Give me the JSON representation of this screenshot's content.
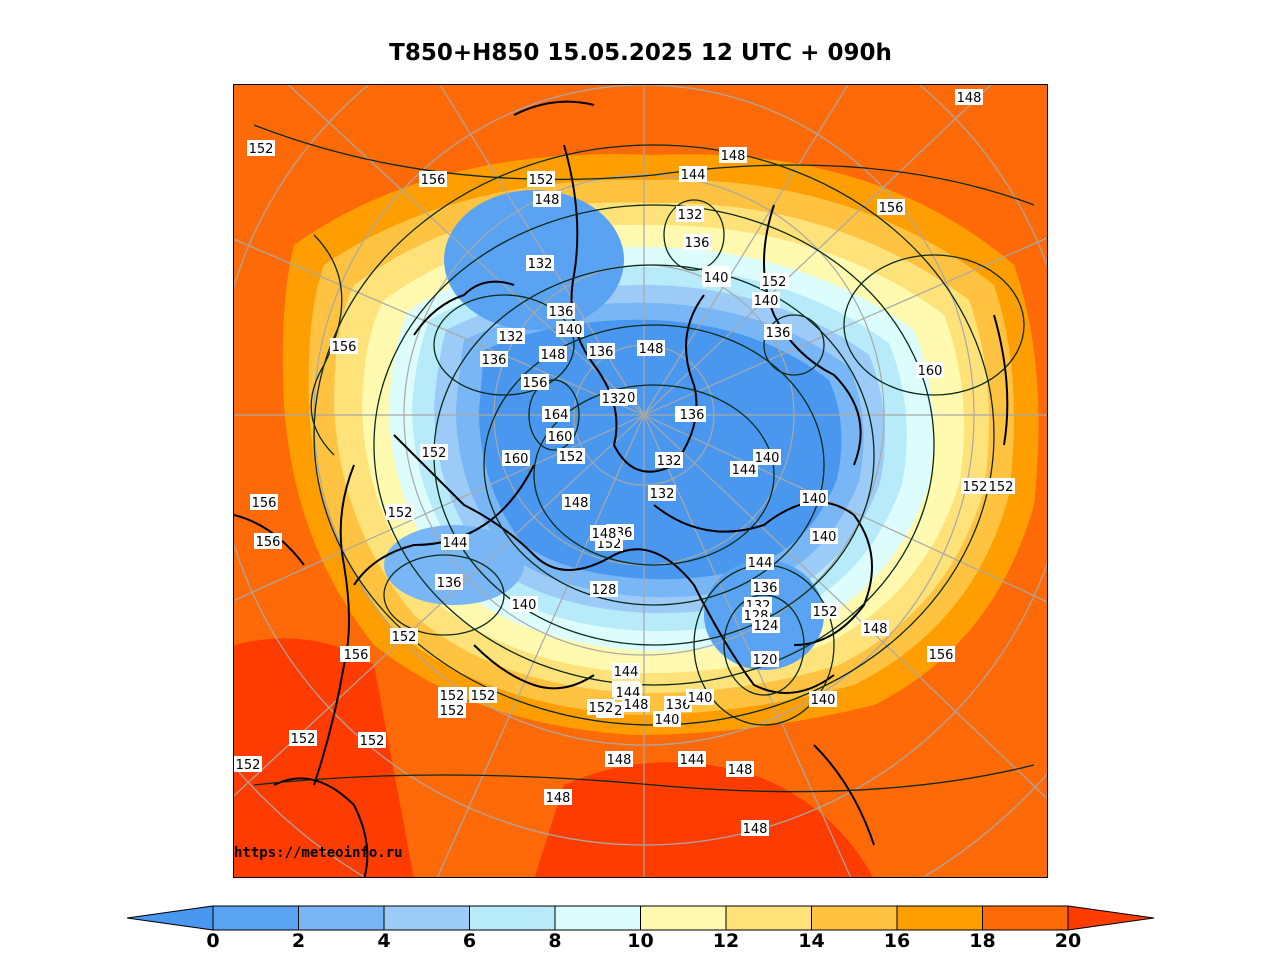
{
  "title": "T850+H850 15.05.2025 12 UTC + 090h",
  "credit": "https://meteoinfo.ru",
  "colorbar": {
    "ticks": [
      "0",
      "2",
      "4",
      "6",
      "8",
      "10",
      "12",
      "14",
      "16",
      "18",
      "20"
    ],
    "colors": [
      "#4a97ef",
      "#5aa3f2",
      "#79b6f5",
      "#9ccbf8",
      "#b8ebfa",
      "#ddfdfd",
      "#fffab0",
      "#ffe27a",
      "#ffc241",
      "#ff9e00",
      "#ff6a08",
      "#ff3c00"
    ]
  },
  "contour_labels": [
    {
      "t": "152"
    },
    {
      "t": "156"
    },
    {
      "t": "152"
    },
    {
      "t": "148"
    },
    {
      "t": "144"
    },
    {
      "t": "132"
    },
    {
      "t": "136"
    },
    {
      "t": "148"
    },
    {
      "t": "152"
    },
    {
      "t": "156"
    },
    {
      "t": "152"
    },
    {
      "t": "132"
    },
    {
      "t": "136"
    },
    {
      "t": "140"
    },
    {
      "t": "136"
    },
    {
      "t": "132"
    },
    {
      "t": "136"
    },
    {
      "t": "148"
    },
    {
      "t": "156"
    },
    {
      "t": "156"
    },
    {
      "t": "164"
    },
    {
      "t": "160"
    },
    {
      "t": "152"
    },
    {
      "t": "160"
    },
    {
      "t": "152"
    },
    {
      "t": "132"
    },
    {
      "t": "132"
    },
    {
      "t": "148"
    },
    {
      "t": "136"
    },
    {
      "t": "140"
    },
    {
      "t": "148"
    },
    {
      "t": "136"
    },
    {
      "t": "136"
    },
    {
      "t": "144"
    },
    {
      "t": "140"
    },
    {
      "t": "140"
    },
    {
      "t": "140"
    },
    {
      "t": "160"
    },
    {
      "t": "152"
    },
    {
      "t": "152"
    },
    {
      "t": "140"
    },
    {
      "t": "144"
    },
    {
      "t": "136"
    },
    {
      "t": "132"
    },
    {
      "t": "128"
    },
    {
      "t": "124"
    },
    {
      "t": "120"
    },
    {
      "t": "148"
    },
    {
      "t": "156"
    },
    {
      "t": "152"
    },
    {
      "t": "148"
    },
    {
      "t": "144"
    },
    {
      "t": "136"
    },
    {
      "t": "140"
    },
    {
      "t": "132"
    },
    {
      "t": "128"
    },
    {
      "t": "156"
    },
    {
      "t": "156"
    },
    {
      "t": "152"
    },
    {
      "t": "156"
    },
    {
      "t": "152"
    },
    {
      "t": "152"
    },
    {
      "t": "136"
    },
    {
      "t": "144"
    },
    {
      "t": "140"
    },
    {
      "t": "152"
    },
    {
      "t": "148"
    },
    {
      "t": "140"
    },
    {
      "t": "152"
    },
    {
      "t": "144"
    },
    {
      "t": "152"
    },
    {
      "t": "152"
    },
    {
      "t": "156"
    },
    {
      "t": "144"
    },
    {
      "t": "144"
    },
    {
      "t": "148"
    },
    {
      "t": "148"
    },
    {
      "t": "152"
    },
    {
      "t": "148"
    },
    {
      "t": "148"
    },
    {
      "t": "152"
    },
    {
      "t": "152"
    },
    {
      "t": "152"
    },
    {
      "t": "152"
    },
    {
      "t": "152"
    },
    {
      "t": "152"
    },
    {
      "t": "140"
    },
    {
      "t": "136"
    },
    {
      "t": "144"
    },
    {
      "t": "148"
    },
    {
      "t": "140"
    },
    {
      "t": "140"
    }
  ]
}
